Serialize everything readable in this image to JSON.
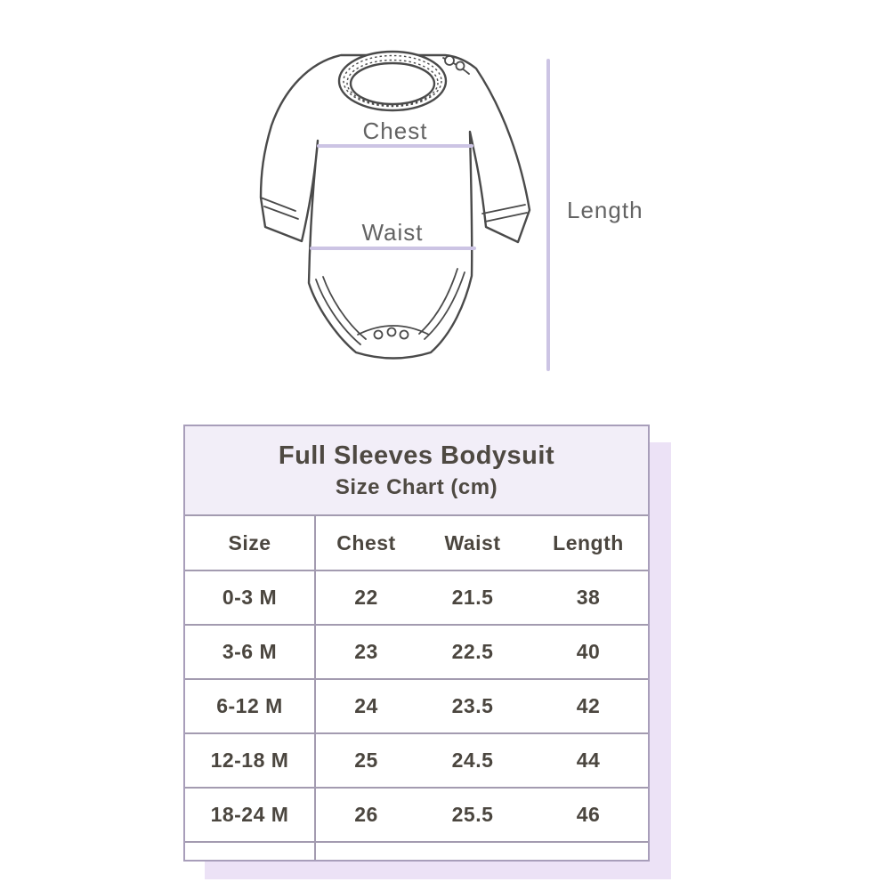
{
  "diagram": {
    "chest_label": "Chest",
    "waist_label": "Waist",
    "length_label": "Length",
    "measure_line_color": "#ccc4e4",
    "outline_color": "#4a4a4a",
    "label_color": "#636363"
  },
  "size_chart": {
    "title": "Full Sleeves Bodysuit",
    "subtitle": "Size Chart (cm)",
    "columns": [
      "Size",
      "Chest",
      "Waist",
      "Length"
    ],
    "rows": [
      {
        "size": "0-3 M",
        "chest": "22",
        "waist": "21.5",
        "length": "38"
      },
      {
        "size": "3-6 M",
        "chest": "23",
        "waist": "22.5",
        "length": "40"
      },
      {
        "size": "6-12 M",
        "chest": "24",
        "waist": "23.5",
        "length": "42"
      },
      {
        "size": "12-18 M",
        "chest": "25",
        "waist": "24.5",
        "length": "44"
      },
      {
        "size": "18-24 M",
        "chest": "26",
        "waist": "25.5",
        "length": "46"
      }
    ],
    "header_bg": "#f2eef8",
    "border_color": "#a39bb0",
    "text_color": "#4b463f",
    "shadow_color": "#ece2f6"
  }
}
